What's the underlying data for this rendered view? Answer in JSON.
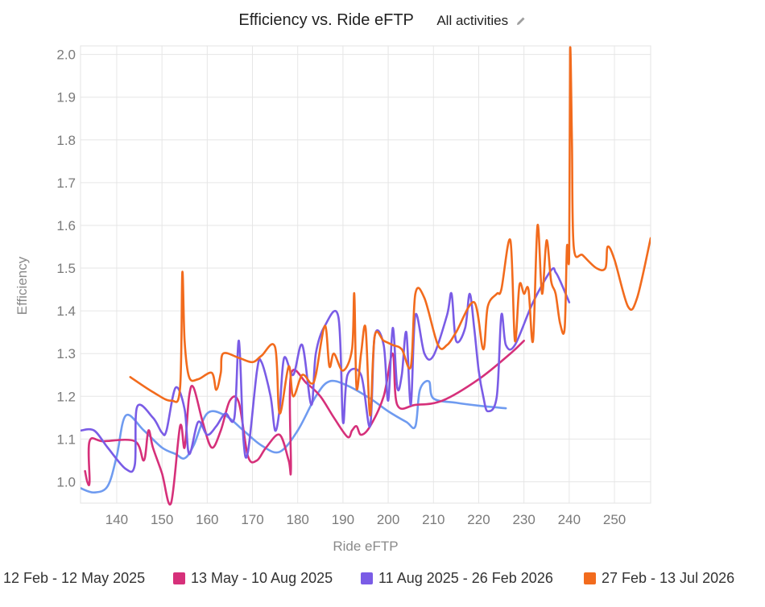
{
  "header": {
    "title": "Efficiency vs. Ride eFTP",
    "filter_label": "All activities",
    "edit_icon": "pencil-icon"
  },
  "chart_data": {
    "type": "line",
    "title": "Efficiency vs. Ride eFTP",
    "xlabel": "Ride eFTP",
    "ylabel": "Efficiency",
    "xlim": [
      132,
      258
    ],
    "ylim": [
      0.95,
      2.02
    ],
    "x_ticks": [
      "140",
      "150",
      "160",
      "170",
      "180",
      "190",
      "200",
      "210",
      "220",
      "230",
      "240",
      "250"
    ],
    "y_ticks": [
      "1.0",
      "1.1",
      "1.2",
      "1.3",
      "1.4",
      "1.5",
      "1.6",
      "1.7",
      "1.8",
      "1.9",
      "2.0"
    ],
    "grid": true,
    "legend_position": "bottom",
    "series": [
      {
        "name": "12 Feb - 12 May 2025",
        "color": "#6f9bf0",
        "points": [
          [
            132,
            0.985
          ],
          [
            135,
            0.975
          ],
          [
            138,
            0.99
          ],
          [
            140,
            1.06
          ],
          [
            142,
            1.155
          ],
          [
            146,
            1.12
          ],
          [
            150,
            1.08
          ],
          [
            153,
            1.065
          ],
          [
            155,
            1.055
          ],
          [
            157,
            1.085
          ],
          [
            160,
            1.16
          ],
          [
            164,
            1.155
          ],
          [
            168,
            1.12
          ],
          [
            172,
            1.085
          ],
          [
            176,
            1.07
          ],
          [
            180,
            1.12
          ],
          [
            184,
            1.2
          ],
          [
            187,
            1.235
          ],
          [
            191,
            1.225
          ],
          [
            196,
            1.195
          ],
          [
            200,
            1.165
          ],
          [
            204,
            1.14
          ],
          [
            206,
            1.13
          ],
          [
            207,
            1.215
          ],
          [
            209,
            1.235
          ],
          [
            210,
            1.195
          ],
          [
            215,
            1.185
          ],
          [
            220,
            1.178
          ],
          [
            226,
            1.172
          ]
        ]
      },
      {
        "name": "13 May - 10 Aug 2025",
        "color": "#d6307a",
        "points": [
          [
            133,
            1.025
          ],
          [
            133.5,
            1.0
          ],
          [
            134,
            1.0
          ],
          [
            134,
            1.095
          ],
          [
            137,
            1.095
          ],
          [
            144,
            1.095
          ],
          [
            146,
            1.05
          ],
          [
            147,
            1.12
          ],
          [
            148,
            1.08
          ],
          [
            150,
            1.02
          ],
          [
            152,
            0.95
          ],
          [
            154,
            1.13
          ],
          [
            155,
            1.08
          ],
          [
            156,
            1.2
          ],
          [
            157,
            1.22
          ],
          [
            159,
            1.14
          ],
          [
            161,
            1.08
          ],
          [
            163,
            1.12
          ],
          [
            165,
            1.19
          ],
          [
            167,
            1.185
          ],
          [
            169,
            1.06
          ],
          [
            171,
            1.05
          ],
          [
            173,
            1.08
          ],
          [
            176,
            1.11
          ],
          [
            178,
            1.05
          ],
          [
            178.5,
            1.03
          ],
          [
            178.5,
            1.25
          ],
          [
            182,
            1.23
          ],
          [
            185,
            1.2
          ],
          [
            188,
            1.15
          ],
          [
            191,
            1.105
          ],
          [
            192,
            1.12
          ],
          [
            193,
            1.13
          ],
          [
            194,
            1.11
          ],
          [
            196,
            1.13
          ],
          [
            199,
            1.2
          ],
          [
            201,
            1.3
          ],
          [
            202,
            1.18
          ],
          [
            206,
            1.18
          ],
          [
            212,
            1.19
          ],
          [
            220,
            1.24
          ],
          [
            227,
            1.3
          ],
          [
            230,
            1.33
          ]
        ]
      },
      {
        "name": "11 Aug 2025 - 26 Feb 2026",
        "color": "#7a5ce6",
        "points": [
          [
            132,
            1.12
          ],
          [
            135,
            1.12
          ],
          [
            138,
            1.08
          ],
          [
            142,
            1.03
          ],
          [
            144,
            1.04
          ],
          [
            144.5,
            1.175
          ],
          [
            148,
            1.15
          ],
          [
            150,
            1.115
          ],
          [
            151,
            1.12
          ],
          [
            153,
            1.22
          ],
          [
            155,
            1.17
          ],
          [
            156,
            1.065
          ],
          [
            158,
            1.14
          ],
          [
            160,
            1.11
          ],
          [
            162,
            1.13
          ],
          [
            164,
            1.16
          ],
          [
            166,
            1.15
          ],
          [
            167,
            1.33
          ],
          [
            168,
            1.1
          ],
          [
            169,
            1.07
          ],
          [
            171,
            1.26
          ],
          [
            172,
            1.28
          ],
          [
            174,
            1.2
          ],
          [
            175,
            1.12
          ],
          [
            176,
            1.17
          ],
          [
            177,
            1.29
          ],
          [
            179,
            1.25
          ],
          [
            181,
            1.32
          ],
          [
            183,
            1.18
          ],
          [
            184,
            1.3
          ],
          [
            186,
            1.365
          ],
          [
            189,
            1.385
          ],
          [
            190,
            1.14
          ],
          [
            191,
            1.25
          ],
          [
            194,
            1.25
          ],
          [
            196,
            1.13
          ],
          [
            197,
            1.34
          ],
          [
            199,
            1.32
          ],
          [
            200,
            1.19
          ],
          [
            201,
            1.36
          ],
          [
            202,
            1.22
          ],
          [
            203,
            1.25
          ],
          [
            204,
            1.35
          ],
          [
            205,
            1.18
          ],
          [
            206,
            1.39
          ],
          [
            208,
            1.3
          ],
          [
            210,
            1.295
          ],
          [
            213,
            1.39
          ],
          [
            214,
            1.44
          ],
          [
            215,
            1.33
          ],
          [
            217,
            1.36
          ],
          [
            218,
            1.44
          ],
          [
            219,
            1.36
          ],
          [
            220,
            1.26
          ],
          [
            221,
            1.2
          ],
          [
            222,
            1.165
          ],
          [
            224,
            1.2
          ],
          [
            225,
            1.39
          ],
          [
            226,
            1.32
          ],
          [
            228,
            1.32
          ],
          [
            232,
            1.42
          ],
          [
            236,
            1.495
          ],
          [
            237,
            1.49
          ],
          [
            238,
            1.47
          ],
          [
            240,
            1.42
          ]
        ]
      },
      {
        "name": "27 Feb - 13 Jul 2026",
        "color": "#f26b1d",
        "points": [
          [
            143,
            1.245
          ],
          [
            148,
            1.21
          ],
          [
            152,
            1.19
          ],
          [
            154,
            1.22
          ],
          [
            154.5,
            1.49
          ],
          [
            155,
            1.33
          ],
          [
            156,
            1.245
          ],
          [
            158,
            1.24
          ],
          [
            161,
            1.255
          ],
          [
            162,
            1.215
          ],
          [
            163,
            1.255
          ],
          [
            163.5,
            1.3
          ],
          [
            167,
            1.29
          ],
          [
            170,
            1.28
          ],
          [
            172,
            1.295
          ],
          [
            175,
            1.315
          ],
          [
            176,
            1.16
          ],
          [
            178,
            1.27
          ],
          [
            179,
            1.2
          ],
          [
            181,
            1.25
          ],
          [
            183,
            1.23
          ],
          [
            184,
            1.25
          ],
          [
            186,
            1.365
          ],
          [
            187,
            1.27
          ],
          [
            188,
            1.3
          ],
          [
            190,
            1.26
          ],
          [
            192,
            1.31
          ],
          [
            192.5,
            1.44
          ],
          [
            193,
            1.22
          ],
          [
            194,
            1.3
          ],
          [
            195,
            1.36
          ],
          [
            196,
            1.155
          ],
          [
            197,
            1.34
          ],
          [
            199,
            1.33
          ],
          [
            201,
            1.32
          ],
          [
            203,
            1.31
          ],
          [
            205,
            1.27
          ],
          [
            206,
            1.44
          ],
          [
            208,
            1.43
          ],
          [
            211,
            1.32
          ],
          [
            213,
            1.32
          ],
          [
            215,
            1.35
          ],
          [
            219,
            1.42
          ],
          [
            221,
            1.31
          ],
          [
            222,
            1.41
          ],
          [
            224,
            1.44
          ],
          [
            225,
            1.45
          ],
          [
            227,
            1.565
          ],
          [
            228,
            1.33
          ],
          [
            229,
            1.46
          ],
          [
            230,
            1.44
          ],
          [
            231,
            1.45
          ],
          [
            232,
            1.33
          ],
          [
            233,
            1.6
          ],
          [
            234,
            1.44
          ],
          [
            235,
            1.565
          ],
          [
            236,
            1.47
          ],
          [
            237,
            1.44
          ],
          [
            238,
            1.37
          ],
          [
            239,
            1.36
          ],
          [
            239.5,
            1.55
          ],
          [
            240,
            1.535
          ],
          [
            240.2,
            2.01
          ],
          [
            240.6,
            1.8
          ],
          [
            241,
            1.55
          ],
          [
            243,
            1.53
          ],
          [
            246,
            1.5
          ],
          [
            248,
            1.5
          ],
          [
            248.5,
            1.55
          ],
          [
            250,
            1.52
          ],
          [
            253,
            1.41
          ],
          [
            255,
            1.43
          ],
          [
            258,
            1.57
          ]
        ]
      }
    ]
  }
}
